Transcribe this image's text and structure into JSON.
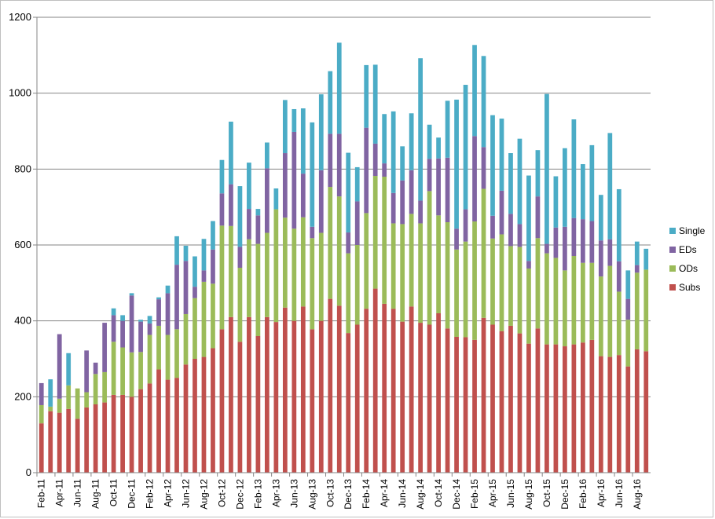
{
  "chart_data": {
    "type": "bar",
    "stacked": true,
    "ylim": [
      0,
      1200
    ],
    "y_ticks": [
      "0",
      "200",
      "400",
      "600",
      "800",
      "1000",
      "1200"
    ],
    "grid": true,
    "legend_position": "right",
    "x": [
      "Feb-11",
      "Mar-11",
      "Apr-11",
      "May-11",
      "Jun-11",
      "Jul-11",
      "Aug-11",
      "Sep-11",
      "Oct-11",
      "Nov-11",
      "Dec-11",
      "Jan-12",
      "Feb-12",
      "Mar-12",
      "Apr-12",
      "May-12",
      "Jun-12",
      "Jul-12",
      "Aug-12",
      "Sep-12",
      "Oct-12",
      "Nov-12",
      "Dec-12",
      "Jan-13",
      "Feb-13",
      "Mar-13",
      "Apr-13",
      "May-13",
      "Jun-13",
      "Jul-13",
      "Aug-13",
      "Sep-13",
      "Oct-13",
      "Nov-13",
      "Dec-13",
      "Jan-14",
      "Feb-14",
      "Mar-14",
      "Apr-14",
      "May-14",
      "Jun-14",
      "Jul-14",
      "Aug-14",
      "Sep-14",
      "Oct-14",
      "Nov-14",
      "Dec-14",
      "Jan-15",
      "Feb-15",
      "Mar-15",
      "Apr-15",
      "May-15",
      "Jun-15",
      "Jul-15",
      "Aug-15",
      "Sep-15",
      "Oct-15",
      "Nov-15",
      "Dec-15",
      "Jan-16",
      "Feb-16",
      "Mar-16",
      "Apr-16",
      "May-16",
      "Jun-16",
      "Jul-16",
      "Aug-16",
      "Sep-16"
    ],
    "x_tick_labels": [
      "Feb-11",
      "Apr-11",
      "Jun-11",
      "Aug-11",
      "Oct-11",
      "Dec-11",
      "Feb-12",
      "Apr-12",
      "Jun-12",
      "Aug-12",
      "Oct-12",
      "Dec-12",
      "Feb-13",
      "Apr-13",
      "Jun-13",
      "Aug-13",
      "Oct-13",
      "Dec-13",
      "Feb-14",
      "Apr-14",
      "Jun-14",
      "Aug-14",
      "Oct-14",
      "Dec-14",
      "Feb-15",
      "Apr-15",
      "Jun-15",
      "Aug-15",
      "Oct-15",
      "Dec-15",
      "Feb-16",
      "Apr-16",
      "Jun-16",
      "Aug-16"
    ],
    "series": [
      {
        "name": "Subs",
        "color": "#c0504d",
        "values": [
          130,
          162,
          158,
          168,
          142,
          172,
          180,
          185,
          205,
          205,
          200,
          220,
          235,
          272,
          245,
          250,
          285,
          300,
          305,
          328,
          378,
          410,
          345,
          410,
          360,
          410,
          397,
          435,
          400,
          438,
          378,
          400,
          458,
          440,
          368,
          390,
          432,
          485,
          445,
          432,
          398,
          438,
          395,
          390,
          420,
          380,
          358,
          357,
          350,
          408,
          390,
          373,
          387,
          367,
          340,
          380,
          338,
          338,
          333,
          338,
          343,
          350,
          307,
          305,
          310,
          280,
          325,
          320
        ]
      },
      {
        "name": "ODs",
        "color": "#9bbb59",
        "values": [
          48,
          12,
          37,
          62,
          80,
          40,
          80,
          80,
          140,
          125,
          117,
          98,
          128,
          115,
          118,
          128,
          133,
          160,
          198,
          170,
          273,
          240,
          195,
          205,
          243,
          222,
          297,
          237,
          243,
          235,
          240,
          232,
          295,
          288,
          210,
          210,
          252,
          297,
          335,
          225,
          257,
          244,
          262,
          352,
          258,
          280,
          230,
          252,
          312,
          340,
          227,
          255,
          210,
          228,
          198,
          238,
          240,
          228,
          200,
          233,
          210,
          203,
          210,
          240,
          167,
          123,
          202,
          215
        ]
      },
      {
        "name": "EDs",
        "color": "#8064a2",
        "values": [
          58,
          0,
          170,
          0,
          0,
          110,
          30,
          130,
          70,
          70,
          150,
          80,
          30,
          70,
          110,
          170,
          140,
          30,
          30,
          90,
          85,
          110,
          55,
          80,
          75,
          170,
          0,
          170,
          255,
          115,
          30,
          165,
          140,
          165,
          55,
          115,
          225,
          85,
          35,
          80,
          115,
          115,
          60,
          85,
          150,
          170,
          55,
          85,
          225,
          110,
          60,
          115,
          85,
          60,
          20,
          110,
          25,
          80,
          115,
          100,
          115,
          110,
          95,
          70,
          80,
          55,
          20,
          0
        ]
      },
      {
        "name": "Single",
        "color": "#4bacc6",
        "values": [
          0,
          72,
          0,
          85,
          0,
          0,
          0,
          0,
          18,
          15,
          6,
          5,
          20,
          5,
          20,
          75,
          40,
          80,
          83,
          75,
          88,
          165,
          160,
          122,
          17,
          68,
          55,
          140,
          60,
          172,
          275,
          200,
          165,
          240,
          210,
          90,
          165,
          208,
          130,
          215,
          90,
          150,
          375,
          90,
          55,
          150,
          340,
          328,
          240,
          240,
          265,
          190,
          160,
          225,
          225,
          122,
          395,
          135,
          207,
          260,
          145,
          200,
          120,
          280,
          190,
          75,
          62,
          55
        ]
      }
    ]
  }
}
